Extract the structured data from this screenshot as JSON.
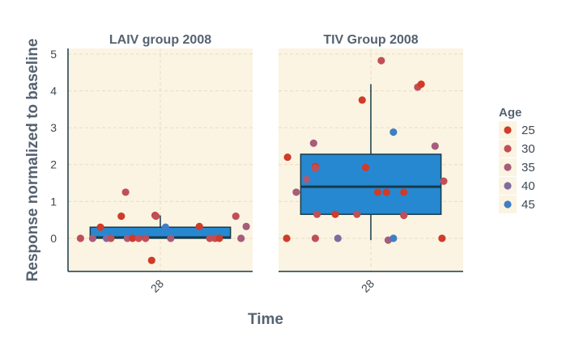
{
  "chart_data": {
    "type": "scatter",
    "subtype": "boxplot-with-jitter",
    "xlabel": "Time",
    "ylabel": "Response normalized to baseline",
    "ylim": [
      -0.9,
      5.15
    ],
    "yticks": [
      0,
      1,
      2,
      3,
      4,
      5
    ],
    "x_category": "28",
    "grid": true,
    "legend_placement": "right",
    "legend": {
      "title": "Age",
      "entries": [
        {
          "label": "25",
          "color": "#d03b2a"
        },
        {
          "label": "30",
          "color": "#c04f57"
        },
        {
          "label": "35",
          "color": "#a65c7a"
        },
        {
          "label": "40",
          "color": "#7e6ba0"
        },
        {
          "label": "45",
          "color": "#3f7ec4"
        }
      ]
    },
    "colors": {
      "panel_bg": "#fbf4e2",
      "box_fill": "#2688d0",
      "box_stroke": "#173a4a",
      "grid": "#eadcc3",
      "axis": "#173a4a"
    },
    "panels": [
      {
        "title": "LAIV group 2008",
        "box": {
          "min": 0,
          "q1": 0.0,
          "median": 0.02,
          "q3": 0.3,
          "max": 0.62
        },
        "points": [
          {
            "x": -0.92,
            "y": 0.0,
            "age": "30"
          },
          {
            "x": -0.78,
            "y": 0.0,
            "age": "35"
          },
          {
            "x": -0.69,
            "y": 0.3,
            "age": "25"
          },
          {
            "x": -0.62,
            "y": 0.0,
            "age": "40"
          },
          {
            "x": -0.57,
            "y": 0.0,
            "age": "30"
          },
          {
            "x": -0.45,
            "y": 0.6,
            "age": "25"
          },
          {
            "x": -0.4,
            "y": 1.25,
            "age": "30"
          },
          {
            "x": -0.38,
            "y": 0.0,
            "age": "35"
          },
          {
            "x": -0.32,
            "y": 0.0,
            "age": "25"
          },
          {
            "x": -0.25,
            "y": 0.0,
            "age": "30"
          },
          {
            "x": -0.17,
            "y": 0.0,
            "age": "30"
          },
          {
            "x": -0.1,
            "y": -0.6,
            "age": "25"
          },
          {
            "x": -0.06,
            "y": 0.62,
            "age": "25"
          },
          {
            "x": -0.05,
            "y": 0.6,
            "age": "30"
          },
          {
            "x": 0.06,
            "y": 0.3,
            "age": "45"
          },
          {
            "x": 0.12,
            "y": 0.0,
            "age": "35"
          },
          {
            "x": 0.45,
            "y": 0.32,
            "age": "25"
          },
          {
            "x": 0.57,
            "y": 0.0,
            "age": "30"
          },
          {
            "x": 0.63,
            "y": 0.0,
            "age": "30"
          },
          {
            "x": 0.68,
            "y": 0.0,
            "age": "25"
          },
          {
            "x": 0.87,
            "y": 0.6,
            "age": "30"
          },
          {
            "x": 0.93,
            "y": 0.0,
            "age": "35"
          },
          {
            "x": 0.99,
            "y": 0.32,
            "age": "35"
          }
        ]
      },
      {
        "title": "TIV Group 2008",
        "box": {
          "min": -0.05,
          "q1": 0.65,
          "median": 1.4,
          "q3": 2.28,
          "max": 4.18
        },
        "points": [
          {
            "x": -0.97,
            "y": 0.0,
            "age": "25"
          },
          {
            "x": -0.96,
            "y": 2.2,
            "age": "25"
          },
          {
            "x": -0.86,
            "y": 1.25,
            "age": "35"
          },
          {
            "x": -0.74,
            "y": 1.6,
            "age": "35"
          },
          {
            "x": -0.66,
            "y": 2.58,
            "age": "35"
          },
          {
            "x": -0.64,
            "y": 1.95,
            "age": "25"
          },
          {
            "x": -0.64,
            "y": 1.9,
            "age": "30"
          },
          {
            "x": -0.64,
            "y": 0.0,
            "age": "30"
          },
          {
            "x": -0.62,
            "y": 0.65,
            "age": "30"
          },
          {
            "x": -0.41,
            "y": 0.65,
            "age": "25"
          },
          {
            "x": -0.38,
            "y": 0.0,
            "age": "40"
          },
          {
            "x": -0.16,
            "y": 0.65,
            "age": "30"
          },
          {
            "x": -0.1,
            "y": 3.75,
            "age": "25"
          },
          {
            "x": -0.06,
            "y": 1.92,
            "age": "25"
          },
          {
            "x": 0.08,
            "y": 1.25,
            "age": "25"
          },
          {
            "x": 0.12,
            "y": 4.82,
            "age": "30"
          },
          {
            "x": 0.18,
            "y": 1.25,
            "age": "25"
          },
          {
            "x": 0.2,
            "y": -0.05,
            "age": "35"
          },
          {
            "x": 0.26,
            "y": 0.0,
            "age": "45"
          },
          {
            "x": 0.26,
            "y": 2.88,
            "age": "45"
          },
          {
            "x": 0.38,
            "y": 1.25,
            "age": "25"
          },
          {
            "x": 0.38,
            "y": 0.62,
            "age": "30"
          },
          {
            "x": 0.54,
            "y": 4.1,
            "age": "30"
          },
          {
            "x": 0.58,
            "y": 4.18,
            "age": "25"
          },
          {
            "x": 0.74,
            "y": 2.5,
            "age": "35"
          },
          {
            "x": 0.82,
            "y": 0.0,
            "age": "25"
          },
          {
            "x": 0.84,
            "y": 1.55,
            "age": "30"
          }
        ]
      }
    ]
  }
}
